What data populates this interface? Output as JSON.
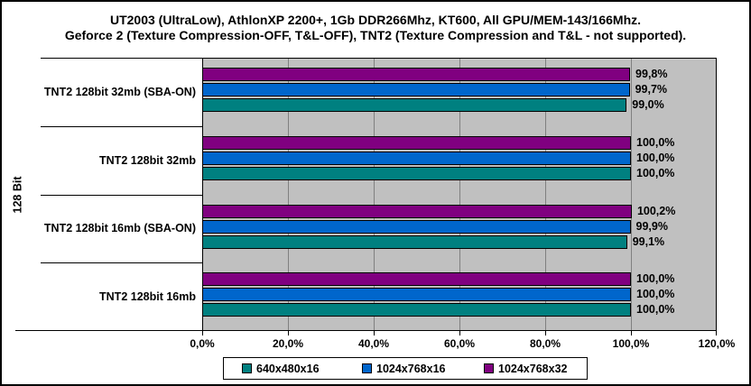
{
  "title": {
    "line1": "UT2003 (UltraLow), AthlonXP 2200+, 1Gb DDR266Mhz, KT600, All GPU/MEM-143/166Mhz.",
    "line2": "Geforce 2 (Texture Compression-OFF, T&L-OFF), TNT2 (Texture Compression and T&L - not supported)."
  },
  "y_axis_label": "128 Bit",
  "x_axis": {
    "ticks": [
      "0,0%",
      "20,0%",
      "40,0%",
      "60,0%",
      "80,0%",
      "100,0%",
      "120,0%"
    ],
    "min": 0,
    "max": 120
  },
  "legend": [
    {
      "label": "640x480x16",
      "color": "#008080"
    },
    {
      "label": "1024x768x16",
      "color": "#0066CC"
    },
    {
      "label": "1024x768x32",
      "color": "#800080"
    }
  ],
  "colors": {
    "plot_background": "#C0C0C0",
    "gridline": "#808080",
    "bar_border": "#000000"
  },
  "chart_data": {
    "type": "bar",
    "orientation": "horizontal",
    "title": "UT2003 (UltraLow), AthlonXP 2200+, 1Gb DDR266Mhz, KT600, All GPU/MEM-143/166Mhz.",
    "subtitle": "Geforce 2 (Texture Compression-OFF, T&L-OFF), TNT2 (Texture Compression and T&L - not supported).",
    "categories": [
      "TNT2 128bit 32mb (SBA-ON)",
      "TNT2 128bit 32mb",
      "TNT2 128bit 16mb (SBA-ON)",
      "TNT2 128bit 16mb"
    ],
    "category_axis_group_label": "128 Bit",
    "series": [
      {
        "name": "1024x768x32",
        "color": "#800080",
        "values": [
          99.8,
          100.0,
          100.2,
          100.0
        ],
        "labels": [
          "99,8%",
          "100,0%",
          "100,2%",
          "100,0%"
        ]
      },
      {
        "name": "1024x768x16",
        "color": "#0066CC",
        "values": [
          99.7,
          100.0,
          99.9,
          100.0
        ],
        "labels": [
          "99,7%",
          "100,0%",
          "99,9%",
          "100,0%"
        ]
      },
      {
        "name": "640x480x16",
        "color": "#008080",
        "values": [
          99.0,
          100.0,
          99.1,
          100.0
        ],
        "labels": [
          "99,0%",
          "100,0%",
          "99,1%",
          "100,0%"
        ]
      }
    ],
    "xlim": [
      0,
      120
    ],
    "grid": true,
    "legend_position": "bottom",
    "value_labels_shown": true
  }
}
